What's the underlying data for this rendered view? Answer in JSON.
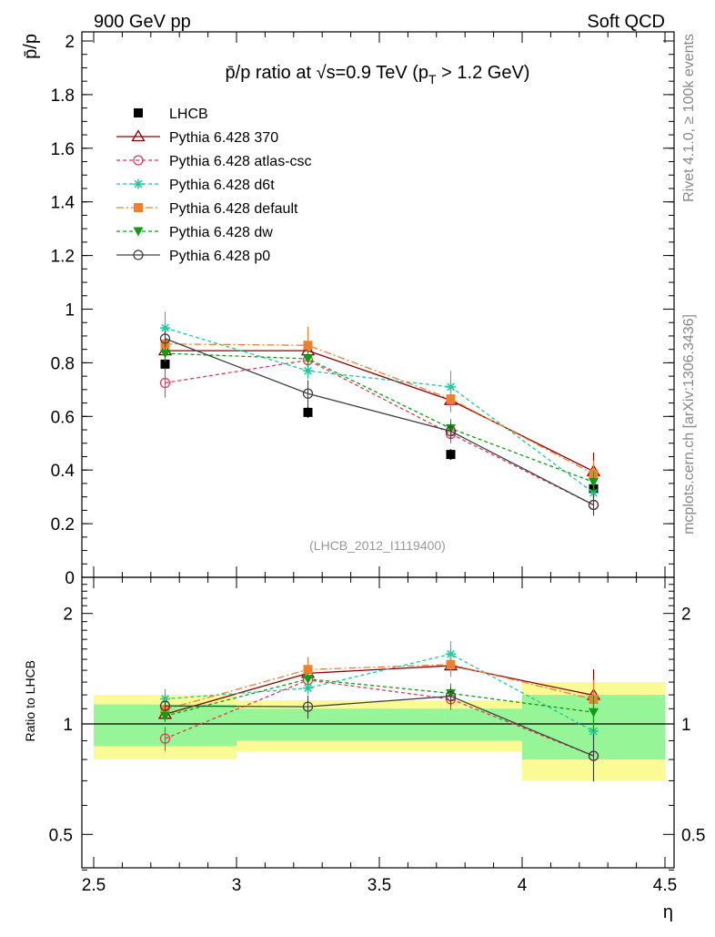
{
  "header": {
    "left": "900 GeV pp",
    "right": "Soft QCD"
  },
  "side": {
    "rivet": "Rivet 4.1.0, ≥ 100k events",
    "mcplots": "mcplots.cern.ch [arXiv:1306.3436]"
  },
  "chart_data": {
    "type": "line",
    "title_parts": {
      "prefix": "p̄/p ratio at √s=0.9 TeV (p",
      "sub": "T",
      "suffix": " > 1.2 GeV)"
    },
    "analysis_label": "(LHCB_2012_I1119400)",
    "ylabel_main": "p̄/p",
    "ylabel_ratio": "Ratio to LHCB",
    "xlabel": "η",
    "x_ticks": [
      "2.5",
      "3",
      "3.5",
      "4",
      "4.5"
    ],
    "y_ticks_main": [
      "0",
      "0.2",
      "0.4",
      "0.6",
      "0.8",
      "1",
      "1.2",
      "1.4",
      "1.6",
      "1.8",
      "2"
    ],
    "y_ticks_ratio": [
      "0.5",
      "1",
      "2"
    ],
    "xlim": [
      2.5,
      4.5
    ],
    "ylim_main": [
      0,
      2.05
    ],
    "ylim_ratio": [
      0.4,
      2.5
    ],
    "x": [
      2.75,
      3.25,
      3.75,
      4.25
    ],
    "bins": [
      [
        2.5,
        3.0
      ],
      [
        3.0,
        3.5
      ],
      [
        3.5,
        4.0
      ],
      [
        4.0,
        4.5
      ]
    ],
    "data": {
      "name": "LHCB",
      "values": [
        0.795,
        0.615,
        0.458,
        0.33
      ],
      "stat_band": [
        0.13,
        0.1,
        0.1,
        0.2
      ],
      "tot_band": [
        0.2,
        0.16,
        0.16,
        0.3
      ]
    },
    "series": [
      {
        "name": "Pythia 6.428 370",
        "color": "#8b0000",
        "dash": "",
        "marker": "triangle-open",
        "values": [
          0.845,
          0.845,
          0.66,
          0.395
        ],
        "errors": [
          0.03,
          0.035,
          0.04,
          0.07
        ]
      },
      {
        "name": "Pythia 6.428 atlas-csc",
        "color": "#e8385a",
        "dash": "4,3",
        "marker": "circle-open",
        "values": [
          0.725,
          0.81,
          0.535,
          0.27
        ],
        "errors": [
          0.055,
          0.03,
          0.035,
          0.04
        ]
      },
      {
        "name": "Pythia 6.428 d6t",
        "color": "#1ec8a0",
        "dash": "4,3",
        "marker": "star",
        "values": [
          0.93,
          0.77,
          0.71,
          0.315
        ],
        "errors": [
          0.06,
          0.03,
          0.06,
          0.04
        ]
      },
      {
        "name": "Pythia 6.428 default",
        "color": "#f08030",
        "dash": "8,3,2,3",
        "marker": "square",
        "values": [
          0.87,
          0.865,
          0.665,
          0.385
        ],
        "errors": [
          0.04,
          0.07,
          0.05,
          0.05
        ]
      },
      {
        "name": "Pythia 6.428 dw",
        "color": "#109e10",
        "dash": "4,3",
        "marker": "triangle-down",
        "values": [
          0.835,
          0.815,
          0.555,
          0.355
        ],
        "errors": [
          0.03,
          0.03,
          0.035,
          0.04
        ]
      },
      {
        "name": "Pythia 6.428 p0",
        "color": "#404040",
        "dash": "",
        "marker": "circle-open",
        "values": [
          0.89,
          0.685,
          0.545,
          0.27
        ],
        "errors": [
          0.03,
          0.05,
          0.03,
          0.04
        ]
      }
    ]
  }
}
